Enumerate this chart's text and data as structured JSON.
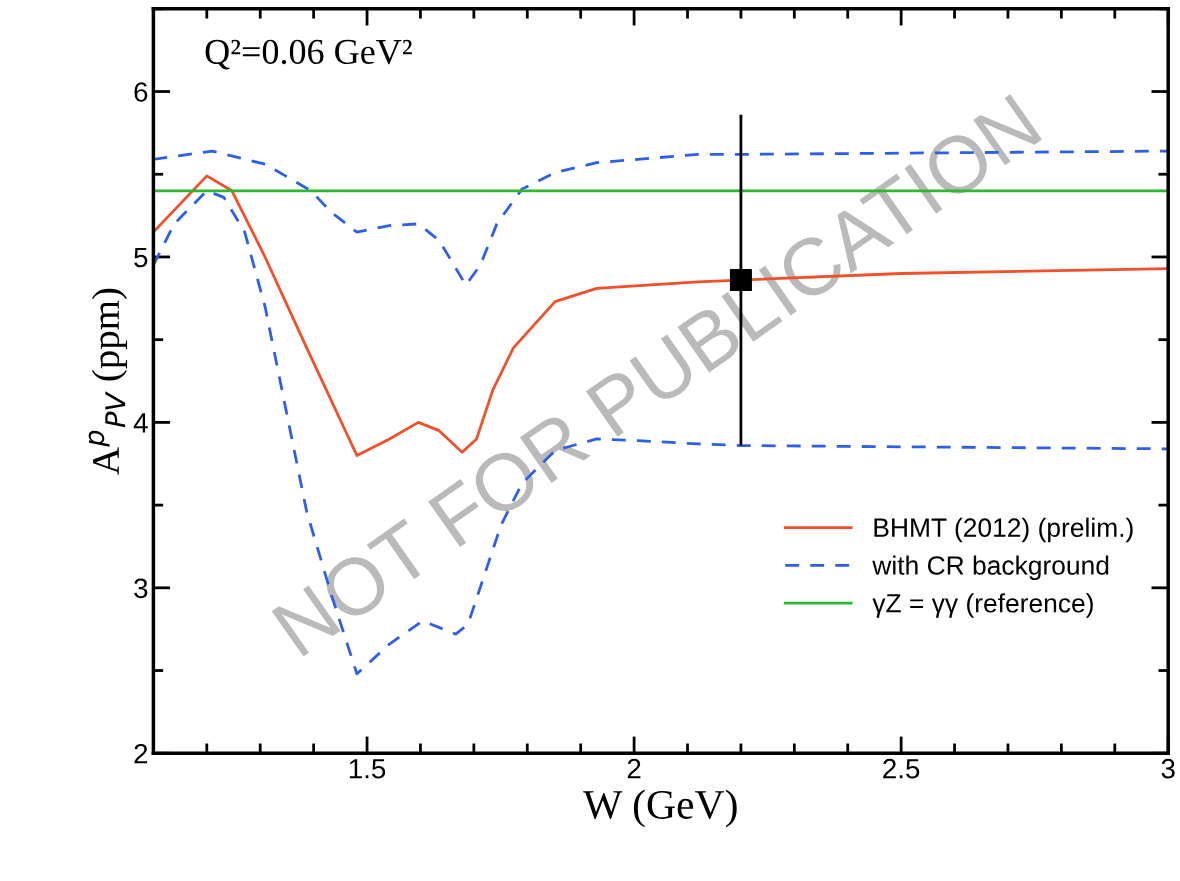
{
  "chart_data": {
    "type": "line",
    "xlabel": "W (GeV)",
    "ylabel": "A$^{p}$$_{PV}$ (ppm)",
    "xlim": [
      1.1,
      3.0
    ],
    "xticks": [
      1.5,
      2,
      2.5,
      3
    ],
    "ylim": [
      2,
      6.5
    ],
    "yticks": [
      2,
      3,
      4,
      5,
      6
    ],
    "grid": false,
    "legend": "bottom right",
    "annotations": [
      "Q²=0.06 GeV²",
      "NOT FOR PUBLICATION"
    ],
    "series": [
      {
        "name": "BHMT (2012) (prelim.)",
        "color": "#f0502a",
        "line_style": "solid",
        "x": [
          1.1,
          1.2,
          1.247,
          1.309,
          1.387,
          1.481,
          1.542,
          1.596,
          1.635,
          1.678,
          1.705,
          1.736,
          1.774,
          1.852,
          1.93,
          2.12,
          2.5,
          3.0
        ],
        "values": [
          5.15,
          5.49,
          5.4,
          5.0,
          4.45,
          3.8,
          3.9,
          4.0,
          3.95,
          3.82,
          3.9,
          4.2,
          4.45,
          4.73,
          4.81,
          4.85,
          4.9,
          4.93
        ]
      },
      {
        "name": "with CR background",
        "color": "#2f5fe8",
        "line_style": "dashed",
        "x": [
          1.1,
          1.21,
          1.31,
          1.395,
          1.433,
          1.481,
          1.542,
          1.596,
          1.635,
          1.685,
          1.712,
          1.743,
          1.79,
          1.852,
          1.93,
          2.12,
          2.2,
          3.0
        ],
        "values": [
          5.59,
          5.64,
          5.56,
          5.4,
          5.27,
          5.15,
          5.19,
          5.2,
          5.1,
          4.83,
          4.95,
          5.2,
          5.41,
          5.51,
          5.57,
          5.62,
          5.62,
          5.64
        ]
      },
      {
        "color": "#2f5fe8",
        "line_style": "dashed",
        "x": [
          1.1,
          1.139,
          1.2,
          1.232,
          1.271,
          1.309,
          1.348,
          1.387,
          1.433,
          1.481,
          1.542,
          1.604,
          1.666,
          1.689,
          1.72,
          1.751,
          1.79,
          1.852,
          1.93,
          2.007,
          2.12,
          2.2,
          3.0
        ],
        "values": [
          4.95,
          5.2,
          5.4,
          5.36,
          5.15,
          4.7,
          4.08,
          3.46,
          2.96,
          2.48,
          2.66,
          2.8,
          2.72,
          2.78,
          3.08,
          3.38,
          3.63,
          3.83,
          3.9,
          3.89,
          3.87,
          3.86,
          3.84
        ]
      },
      {
        "name": "γZ = γγ (reference)",
        "color": "#2db82d",
        "line_style": "solid",
        "x": [
          1.1,
          3.0
        ],
        "values": [
          5.4,
          5.4
        ]
      },
      {
        "type": "scatter",
        "color": "#000000",
        "marker": "square",
        "x": [
          2.2
        ],
        "values": [
          4.86
        ],
        "errors": [
          1.0
        ]
      }
    ]
  }
}
